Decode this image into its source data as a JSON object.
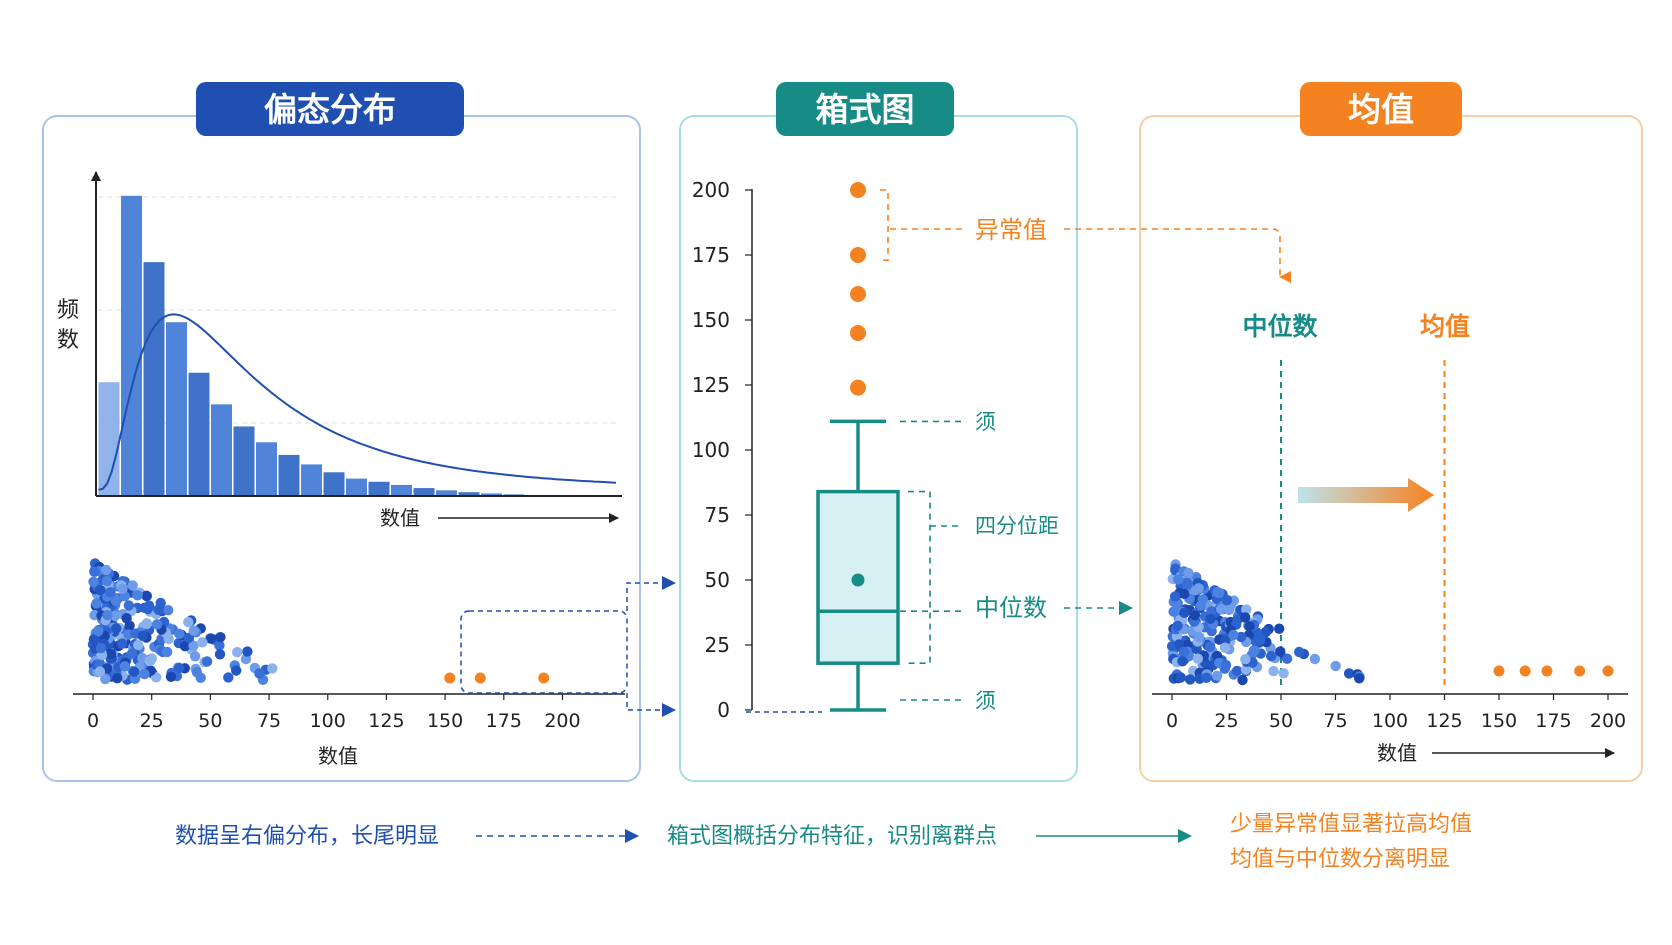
{
  "colors": {
    "blue": "#1f4fb0",
    "blue_bar": "#4a7fd4",
    "blue_light": "#8fb3ea",
    "teal": "#178c87",
    "teal_light": "#d7f0f3",
    "orange": "#f58220",
    "panel_blue": "#a9c4ea",
    "panel_teal": "#a8dde3",
    "panel_orange": "#f8cfa3"
  },
  "panels": {
    "skew": {
      "title": "偏态分布",
      "y_label_line1": "频",
      "y_label_line2": "数",
      "x_label": "数值",
      "strip_x_label": "数值"
    },
    "box": {
      "title": "箱式图",
      "outlier_label": "异常值",
      "whisker_top_label": "须",
      "iqr_label": "四分位距",
      "median_label": "中位数",
      "whisker_bottom_label": "须"
    },
    "mean": {
      "title": "均值",
      "median_label": "中位数",
      "mean_label": "均值",
      "x_label": "数值"
    }
  },
  "captions": {
    "skew": "数据呈右偏分布，长尾明显",
    "box": "箱式图概括分布特征，识别离群点",
    "mean_line1": "少量异常值显著拉高均值",
    "mean_line2": "均值与中位数分离明显"
  },
  "chart_data": [
    {
      "type": "bar",
      "title": "偏态分布",
      "xlabel": "数值",
      "ylabel": "频数",
      "values": [
        0.36,
        0.95,
        0.74,
        0.55,
        0.39,
        0.29,
        0.22,
        0.17,
        0.13,
        0.1,
        0.075,
        0.055,
        0.045,
        0.035,
        0.025,
        0.018,
        0.012,
        0.008,
        0.005,
        0.003,
        0.002
      ],
      "curve": "right-skewed density",
      "grid": true
    },
    {
      "type": "scatter",
      "xlabel": "数值",
      "x_ticks": [
        0,
        25,
        50,
        75,
        100,
        125,
        150,
        175,
        200
      ],
      "xlim": [
        0,
        210
      ],
      "outliers_x": [
        152,
        165,
        192
      ]
    },
    {
      "type": "box",
      "title": "箱式图",
      "y_ticks": [
        0,
        25,
        50,
        75,
        100,
        125,
        150,
        175,
        200
      ],
      "ylim": [
        0,
        200
      ],
      "min": 0,
      "q1": 18,
      "median": 38,
      "mean": 50,
      "q3": 84,
      "max": 111,
      "outliers": [
        124,
        145,
        160,
        175,
        200
      ]
    },
    {
      "type": "scatter",
      "title": "均值",
      "xlabel": "数值",
      "x_ticks": [
        0,
        25,
        50,
        75,
        100,
        125,
        150,
        175,
        200
      ],
      "xlim": [
        0,
        210
      ],
      "median_x": 50,
      "mean_x": 125,
      "outliers_x": [
        150,
        162,
        172,
        187,
        200
      ]
    }
  ]
}
